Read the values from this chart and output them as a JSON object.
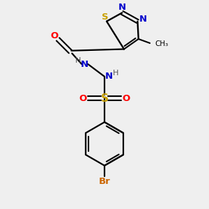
{
  "bg_color": "#efefef",
  "bond_color": "#000000",
  "colors": {
    "S": "#c8a000",
    "N": "#0000cc",
    "O": "#ff0000",
    "Br": "#cc6600",
    "C": "#000000",
    "H": "#555555"
  }
}
